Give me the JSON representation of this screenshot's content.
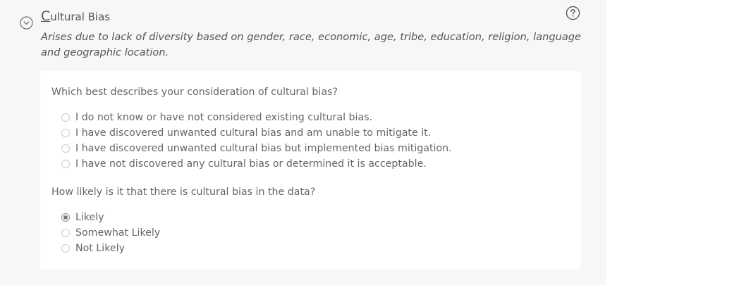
{
  "section": {
    "title_first_letter": "C",
    "title_rest": "ultural Bias",
    "description": "Arises due to lack of diversity based on gender, race, economic, age, tribe, education, religion, language and geographic location.",
    "toggle_icon": "chevron-down-circle-icon",
    "help_icon": "question-circle-icon"
  },
  "questions": [
    {
      "text": "Which best describes your consideration of cultural bias?",
      "options": [
        {
          "label": "I do not know or have not considered existing cultural bias.",
          "selected": false
        },
        {
          "label": "I have discovered unwanted cultural bias and am unable to mitigate it.",
          "selected": false
        },
        {
          "label": "I have discovered unwanted cultural bias but implemented bias mitigation.",
          "selected": false
        },
        {
          "label": "I have not discovered any cultural bias or determined it is acceptable.",
          "selected": false
        }
      ]
    },
    {
      "text": "How likely is it that there is cultural bias in the data?",
      "options": [
        {
          "label": "Likely",
          "selected": true
        },
        {
          "label": "Somewhat Likely",
          "selected": false
        },
        {
          "label": "Not Likely",
          "selected": false
        }
      ]
    }
  ],
  "colors": {
    "panel_background": "#f7f7f7",
    "card_background": "#ffffff",
    "text": "#555555",
    "radio_border": "#cccccc",
    "radio_selected": "#777777"
  }
}
